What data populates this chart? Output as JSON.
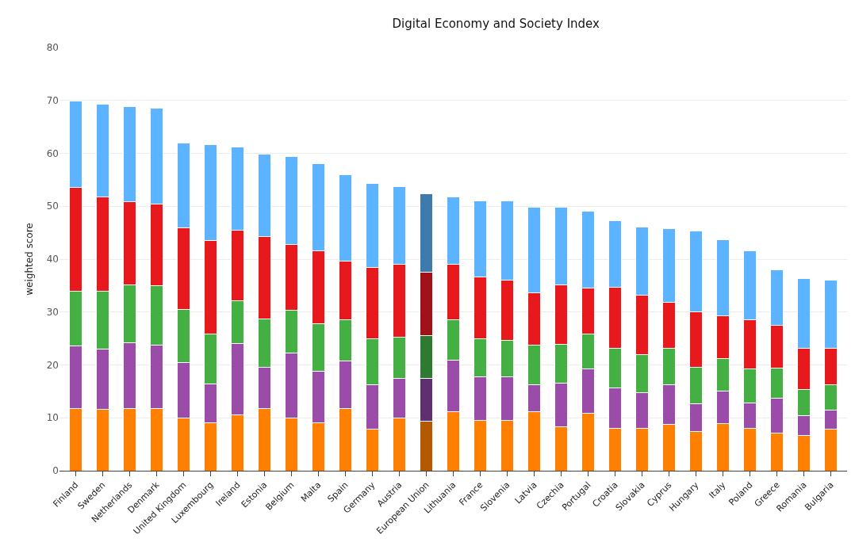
{
  "chart_data": {
    "type": "bar",
    "stacked": true,
    "title": "Digital Economy and Society Index",
    "ylabel": "weighted score",
    "categories": [
      "Finland",
      "Sweden",
      "Netherlands",
      "Denmark",
      "United Kingdom",
      "Luxembourg",
      "Ireland",
      "Estonia",
      "Belgium",
      "Malta",
      "Spain",
      "Germany",
      "Austria",
      "European Union",
      "Lithuania",
      "France",
      "Slovenia",
      "Latvia",
      "Czechia",
      "Portugal",
      "Croatia",
      "Slovakia",
      "Cyprus",
      "Hungary",
      "Italy",
      "Poland",
      "Greece",
      "Romania",
      "Bulgaria"
    ],
    "series": [
      {
        "colors": [
          "#ff8000",
          "#ff8000",
          "#ff8000",
          "#ff8000",
          "#ff8000",
          "#ff8000",
          "#ff8000",
          "#ff8000",
          "#ff8000",
          "#ff8000",
          "#ff8000",
          "#ff8000",
          "#ff8000",
          "#b35a00",
          "#ff8000",
          "#ff8000",
          "#ff8000",
          "#ff8000",
          "#ff8000",
          "#ff8000",
          "#ff8000",
          "#ff8000",
          "#ff8000",
          "#ff8000",
          "#ff8000",
          "#ff8000",
          "#ff8000",
          "#ff8000",
          "#ff8000"
        ],
        "values": [
          11.8,
          11.6,
          11.8,
          11.8,
          10.0,
          9.0,
          10.5,
          11.8,
          9.9,
          9.0,
          11.8,
          7.8,
          10.0,
          9.3,
          11.1,
          9.5,
          9.5,
          11.1,
          8.3,
          10.8,
          8.0,
          8.0,
          8.7,
          7.4,
          8.9,
          8.0,
          7.1,
          6.6,
          7.8
        ]
      },
      {
        "colors": [
          "#9b4ca8",
          "#9b4ca8",
          "#9b4ca8",
          "#9b4ca8",
          "#9b4ca8",
          "#9b4ca8",
          "#9b4ca8",
          "#9b4ca8",
          "#9b4ca8",
          "#9b4ca8",
          "#9b4ca8",
          "#9b4ca8",
          "#9b4ca8",
          "#5e3070",
          "#9b4ca8",
          "#9b4ca8",
          "#9b4ca8",
          "#9b4ca8",
          "#9b4ca8",
          "#9b4ca8",
          "#9b4ca8",
          "#9b4ca8",
          "#9b4ca8",
          "#9b4ca8",
          "#9b4ca8",
          "#9b4ca8",
          "#9b4ca8",
          "#9b4ca8",
          "#9b4ca8"
        ],
        "values": [
          11.8,
          11.4,
          12.4,
          12.0,
          10.5,
          7.4,
          13.5,
          7.7,
          12.3,
          9.8,
          8.9,
          8.4,
          7.5,
          8.2,
          9.8,
          8.2,
          8.2,
          5.1,
          8.3,
          8.4,
          7.7,
          6.8,
          7.5,
          5.2,
          6.2,
          4.8,
          6.6,
          3.8,
          3.6
        ]
      },
      {
        "colors": [
          "#44b044",
          "#44b044",
          "#44b044",
          "#44b044",
          "#44b044",
          "#44b044",
          "#44b044",
          "#44b044",
          "#44b044",
          "#44b044",
          "#44b044",
          "#44b044",
          "#44b044",
          "#2e7a30",
          "#44b044",
          "#44b044",
          "#44b044",
          "#44b044",
          "#44b044",
          "#44b044",
          "#44b044",
          "#44b044",
          "#44b044",
          "#44b044",
          "#44b044",
          "#44b044",
          "#44b044",
          "#44b044",
          "#44b044"
        ],
        "values": [
          10.3,
          10.9,
          10.9,
          11.2,
          10.0,
          9.5,
          8.2,
          9.2,
          8.1,
          9.0,
          7.9,
          8.8,
          7.8,
          8.0,
          7.7,
          7.2,
          6.9,
          7.5,
          7.3,
          6.7,
          7.4,
          7.2,
          6.9,
          7.0,
          6.1,
          6.4,
          5.7,
          4.9,
          4.8
        ]
      },
      {
        "colors": [
          "#e8191c",
          "#e8191c",
          "#e8191c",
          "#e8191c",
          "#e8191c",
          "#e8191c",
          "#e8191c",
          "#e8191c",
          "#e8191c",
          "#e8191c",
          "#e8191c",
          "#e8191c",
          "#e8191c",
          "#a11218",
          "#e8191c",
          "#e8191c",
          "#e8191c",
          "#e8191c",
          "#e8191c",
          "#e8191c",
          "#e8191c",
          "#e8191c",
          "#e8191c",
          "#e8191c",
          "#e8191c",
          "#e8191c",
          "#e8191c",
          "#e8191c",
          "#e8191c"
        ],
        "values": [
          19.6,
          17.8,
          15.7,
          15.4,
          15.4,
          17.6,
          13.3,
          15.5,
          12.5,
          13.7,
          11.0,
          13.4,
          13.8,
          12.1,
          10.5,
          11.7,
          11.5,
          9.9,
          11.2,
          8.7,
          11.6,
          11.2,
          8.7,
          10.5,
          8.1,
          9.4,
          8.1,
          7.8,
          7.0
        ]
      },
      {
        "colors": [
          "#5cb3ff",
          "#5cb3ff",
          "#5cb3ff",
          "#5cb3ff",
          "#5cb3ff",
          "#5cb3ff",
          "#5cb3ff",
          "#5cb3ff",
          "#5cb3ff",
          "#5cb3ff",
          "#5cb3ff",
          "#5cb3ff",
          "#5cb3ff",
          "#3f7aad",
          "#5cb3ff",
          "#5cb3ff",
          "#5cb3ff",
          "#5cb3ff",
          "#5cb3ff",
          "#5cb3ff",
          "#5cb3ff",
          "#5cb3ff",
          "#5cb3ff",
          "#5cb3ff",
          "#5cb3ff",
          "#5cb3ff",
          "#5cb3ff",
          "#5cb3ff",
          "#5cb3ff"
        ],
        "values": [
          16.4,
          17.6,
          18.0,
          18.1,
          16.0,
          18.2,
          15.7,
          15.7,
          16.6,
          16.6,
          16.4,
          15.9,
          14.6,
          14.8,
          12.7,
          14.4,
          14.9,
          16.2,
          14.7,
          14.5,
          12.5,
          12.9,
          13.9,
          15.2,
          14.4,
          12.9,
          10.5,
          13.2,
          12.9
        ]
      }
    ],
    "ylim": [
      0,
      80
    ],
    "yticks": [
      0,
      10,
      20,
      30,
      40,
      50,
      60,
      70,
      80
    ],
    "grid": "y"
  }
}
